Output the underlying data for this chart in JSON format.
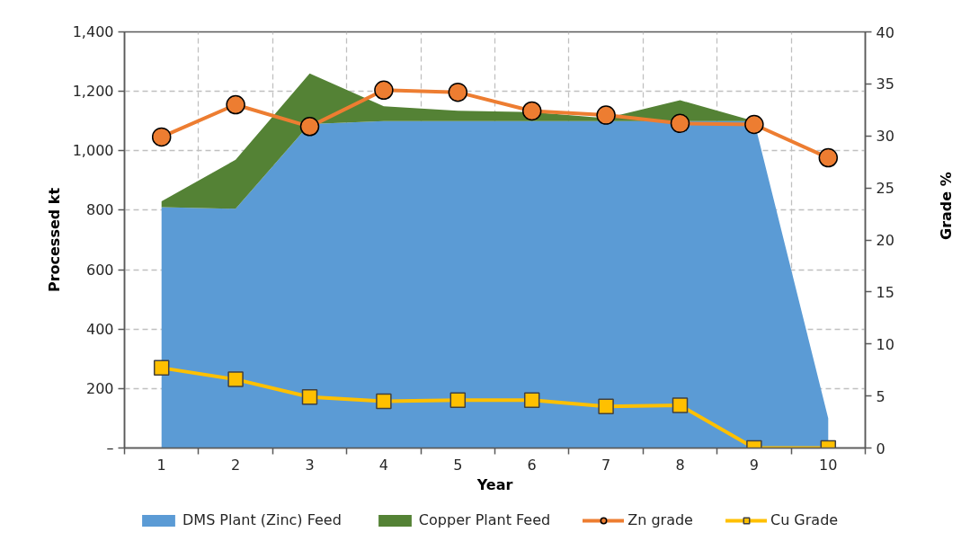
{
  "chart_data": {
    "type": "area",
    "stacked": true,
    "categories": [
      "1",
      "2",
      "3",
      "4",
      "5",
      "6",
      "7",
      "8",
      "9",
      "10"
    ],
    "xlabel": "Year",
    "ylabel": "Processed kt",
    "y2label": "Grade %",
    "ylim": [
      0,
      1400
    ],
    "yticks": [
      {
        "value": 0,
        "label": "–"
      },
      200,
      400,
      600,
      800,
      {
        "value": 1000,
        "label": "1,000"
      },
      {
        "value": 1200,
        "label": "1,200"
      },
      {
        "value": 1400,
        "label": "1,400"
      }
    ],
    "y2lim": [
      0,
      40
    ],
    "y2ticks": [
      0,
      5,
      10,
      15,
      20,
      25,
      30,
      35,
      40
    ],
    "grid": true,
    "legend": "bottom",
    "series": [
      {
        "name": "DMS Plant (Zinc) Feed",
        "color": "#5b9bd5",
        "values": [
          810,
          805,
          1090,
          1100,
          1100,
          1100,
          1100,
          1100,
          1100,
          100
        ]
      },
      {
        "name": "Copper Plant Feed",
        "color": "#548235",
        "values": [
          20,
          165,
          170,
          50,
          35,
          30,
          10,
          70,
          0,
          0
        ]
      },
      {
        "name": "Zn grade",
        "type": "line",
        "axis": "y2",
        "marker": "circle",
        "color": "#ed7d31",
        "values": [
          29.9,
          33.0,
          30.9,
          34.4,
          34.2,
          32.4,
          32.0,
          31.2,
          31.1,
          27.9
        ]
      },
      {
        "name": "Cu Grade",
        "type": "line",
        "axis": "y2",
        "marker": "square",
        "color": "#ffc000",
        "values": [
          7.7,
          6.6,
          4.9,
          4.5,
          4.6,
          4.6,
          4.0,
          4.1,
          0,
          0
        ]
      }
    ]
  }
}
